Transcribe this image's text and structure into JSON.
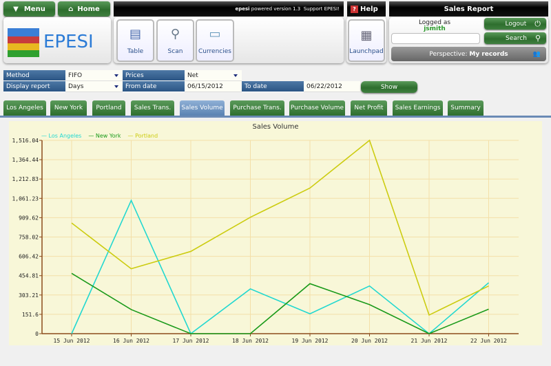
{
  "topbar": {
    "menu": "Menu",
    "home": "Home",
    "powered_brand": "epesi",
    "powered_text": "powered",
    "version": "version 1.3",
    "support": "Support EPESI!",
    "help": "Help",
    "section_title": "Sales Report"
  },
  "logo": "EPESI",
  "toolbar": [
    {
      "label": "Table",
      "icon": "table-report-icon"
    },
    {
      "label": "Scan",
      "icon": "magnifier-icon"
    },
    {
      "label": "Currencies",
      "icon": "currencies-icon"
    }
  ],
  "launchpad": "Launchpad",
  "user": {
    "logged_as": "Logged as",
    "username": "jsmith",
    "search_value": "",
    "logout": "Logout",
    "search": "Search",
    "perspective_label": "Perspective:",
    "perspective_value": "My records"
  },
  "filters": {
    "method_label": "Method",
    "method_value": "FIFO",
    "prices_label": "Prices",
    "prices_value": "Net",
    "display_label": "Display report",
    "display_value": "Days",
    "from_label": "From date",
    "from_value": "06/15/2012",
    "to_label": "To date",
    "to_value": "06/22/2012",
    "show": "Show"
  },
  "tabs": [
    "Los Angeles",
    "New York",
    "Portland",
    "Sales Trans.",
    "Sales Volume",
    "Purchase Trans.",
    "Purchase Volume",
    "Net Profit",
    "Sales Earnings",
    "Summary"
  ],
  "active_tab": "Sales Volume",
  "chart_data": {
    "type": "line",
    "title": "Sales Volume",
    "categories": [
      "15 Jun 2012",
      "16 Jun 2012",
      "17 Jun 2012",
      "18 Jun 2012",
      "19 Jun 2012",
      "20 Jun 2012",
      "21 Jun 2012",
      "22 Jun 2012"
    ],
    "y_ticks": [
      "0",
      "151.6",
      "303.21",
      "454.81",
      "606.42",
      "758.02",
      "909.62",
      "1,061.23",
      "1,212.83",
      "1,364.44",
      "1,516.04"
    ],
    "ylim": [
      0,
      1516.04
    ],
    "grid": true,
    "legend": "top-left",
    "series": [
      {
        "name": "Los Angeles",
        "color": "#22d8d0",
        "values": [
          0,
          1045,
          0,
          351,
          156,
          374,
          0,
          399
        ]
      },
      {
        "name": "New York",
        "color": "#1a9a1a",
        "values": [
          473,
          189,
          0,
          0,
          392,
          228,
          0,
          192
        ]
      },
      {
        "name": "Portland",
        "color": "#cccc10",
        "values": [
          868,
          509,
          645,
          913,
          1142,
          1516.04,
          146,
          374
        ]
      }
    ]
  }
}
